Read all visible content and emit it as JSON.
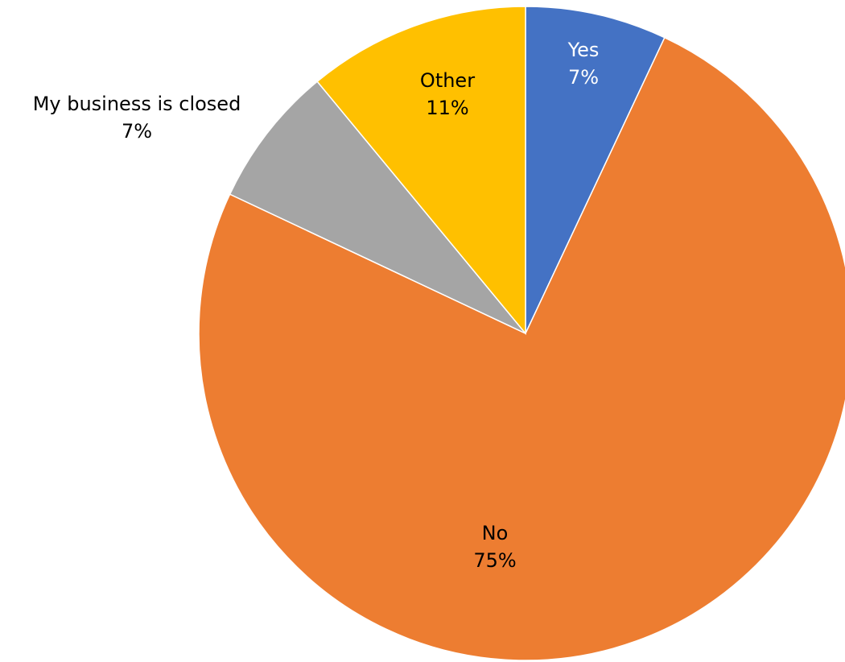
{
  "chart_data": {
    "type": "pie",
    "title": "",
    "categories": [
      "Yes",
      "No",
      "My business is closed",
      "Other"
    ],
    "values": [
      7,
      75,
      7,
      11
    ],
    "value_labels": [
      "7%",
      "75%",
      "7%",
      "11%"
    ],
    "colors": [
      "#4472C4",
      "#ED7D31",
      "#A5A5A5",
      "#FFC000"
    ],
    "label_colors": [
      "#FFFFFF",
      "#000000",
      "#000000",
      "#000000"
    ],
    "start_angle_deg": 0,
    "direction": "clockwise",
    "legend": "none"
  }
}
